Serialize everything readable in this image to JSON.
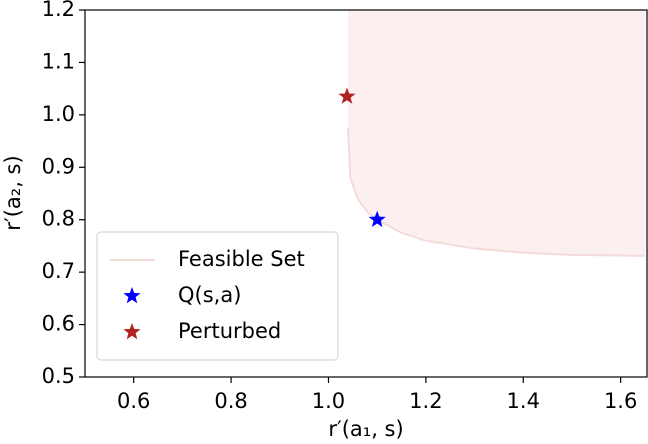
{
  "chart_data": {
    "type": "line",
    "xlabel": "r′(a₁, s)",
    "ylabel": "r′(a₂, s)",
    "xlim": [
      0.5,
      1.65
    ],
    "ylim": [
      0.5,
      1.2
    ],
    "xticks": [
      0.6,
      0.8,
      {
        "value": 1,
        "label": "1.0"
      },
      1.2,
      1.4,
      1.6
    ],
    "yticks": [
      0.5,
      0.6,
      0.7,
      0.8,
      0.9,
      {
        "value": 1,
        "label": "1.0"
      },
      1.1,
      1.2
    ],
    "legend": "lower left",
    "series": [
      {
        "name": "Feasible Set",
        "color": "#f5dada",
        "fill": "#fbefef",
        "mode": "line",
        "x": [
          1.04,
          1.045,
          1.06,
          1.08,
          1.1,
          1.15,
          1.2,
          1.3,
          1.4,
          1.5,
          1.65
        ],
        "values": [
          0.975,
          0.88,
          0.84,
          0.815,
          0.8,
          0.775,
          0.76,
          0.745,
          0.737,
          0.733,
          0.731
        ]
      },
      {
        "name": "Q(s,a)",
        "color": "#0000ff",
        "mode": "star",
        "x": [
          1.1
        ],
        "values": [
          0.8
        ]
      },
      {
        "name": "Perturbed",
        "color": "#b22222",
        "mode": "star",
        "x": [
          1.038
        ],
        "values": [
          1.035
        ]
      }
    ]
  }
}
